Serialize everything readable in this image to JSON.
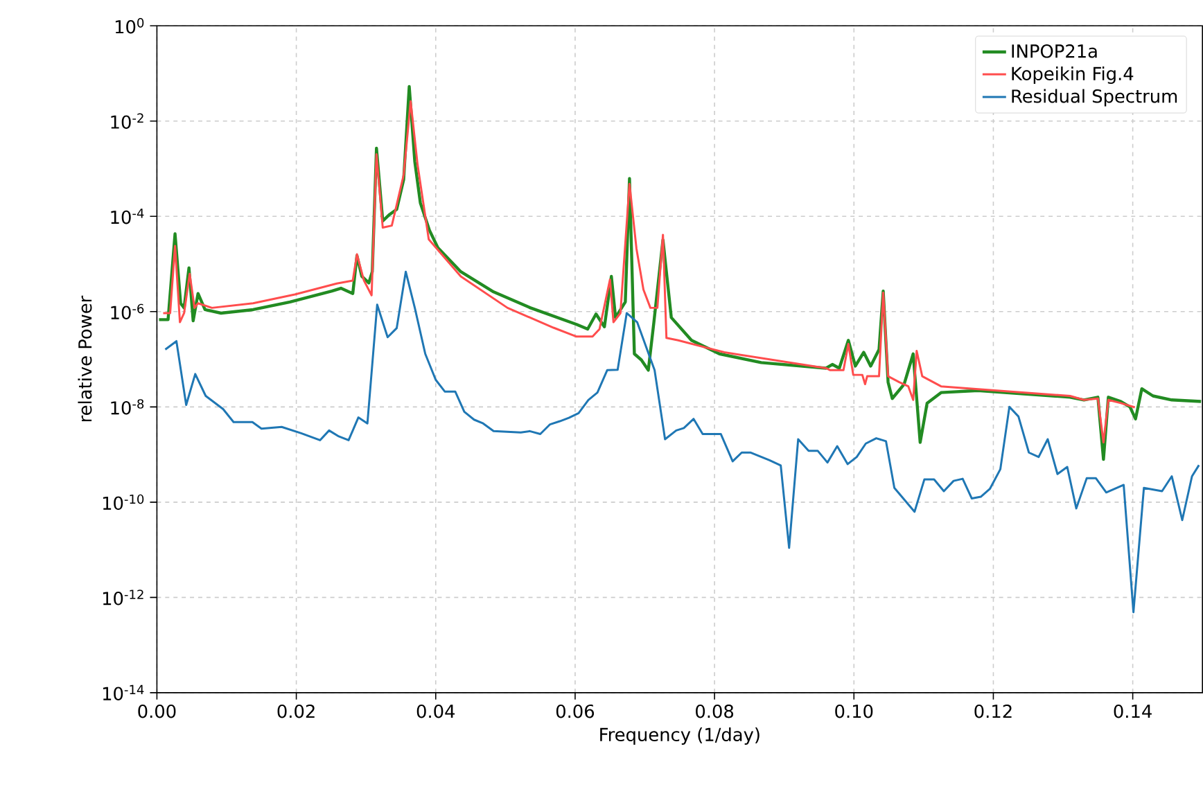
{
  "chart_data": {
    "type": "line",
    "xlabel": "Frequency (1/day)",
    "ylabel": "relative Power",
    "log": "y",
    "grid": true,
    "legend": "top right",
    "xlim": [
      0,
      0.15
    ],
    "ylim": [
      1e-14,
      1
    ],
    "xticks": [
      {
        "value": 0,
        "label": "0.00"
      },
      {
        "value": 0.02,
        "label": "0.02"
      },
      {
        "value": 0.04,
        "label": "0.04"
      },
      {
        "value": 0.06,
        "label": "0.06"
      },
      {
        "value": 0.08,
        "label": "0.08"
      },
      {
        "value": 0.1,
        "label": "0.10"
      },
      {
        "value": 0.12,
        "label": "0.12"
      },
      {
        "value": 0.14,
        "label": "0.14"
      }
    ],
    "yticks": [
      {
        "value": 1e-14,
        "label": "10$^{-14}$"
      },
      {
        "value": 1e-12,
        "label": "10$^{-12}$"
      },
      {
        "value": 1e-10,
        "label": "10$^{-10}$"
      },
      {
        "value": 1e-08,
        "label": "10$^{-8}$"
      },
      {
        "value": 1e-06,
        "label": "10$^{-6}$"
      },
      {
        "value": 0.0001,
        "label": "10$^{-4}$"
      },
      {
        "value": 0.01,
        "label": "10$^{-2}$"
      },
      {
        "value": 1,
        "label": "10$^{0}$"
      }
    ],
    "series": [
      {
        "name": "INPOP21a",
        "color": "#228b22",
        "x": [
          0.0003,
          0.0016,
          0.0026,
          0.0034,
          0.0039,
          0.0046,
          0.0052,
          0.0059,
          0.0069,
          0.0092,
          0.0138,
          0.0191,
          0.0251,
          0.0264,
          0.0281,
          0.0287,
          0.0294,
          0.0304,
          0.0309,
          0.0315,
          0.0324,
          0.0334,
          0.0344,
          0.0354,
          0.0362,
          0.037,
          0.0378,
          0.0391,
          0.0403,
          0.0436,
          0.0483,
          0.0536,
          0.0602,
          0.0618,
          0.063,
          0.0642,
          0.0652,
          0.0658,
          0.0672,
          0.0678,
          0.0685,
          0.0695,
          0.0705,
          0.0713,
          0.0726,
          0.0738,
          0.0767,
          0.0807,
          0.0867,
          0.096,
          0.0969,
          0.0979,
          0.0992,
          0.1002,
          0.1014,
          0.1024,
          0.1036,
          0.1042,
          0.1049,
          0.1055,
          0.1072,
          0.1085,
          0.1095,
          0.1105,
          0.1125,
          0.1178,
          0.131,
          0.133,
          0.135,
          0.1358,
          0.1365,
          0.1383,
          0.1396,
          0.1404,
          0.1413,
          0.1429,
          0.1456,
          0.1498
        ],
        "values": [
          6.8e-07,
          6.8e-07,
          4.3e-05,
          1.5e-06,
          1.2e-06,
          8.3e-06,
          6.4e-07,
          2.4e-06,
          1.1e-06,
          9.3e-07,
          1.1e-06,
          1.6e-06,
          2.7e-06,
          3.1e-06,
          2.4e-06,
          1.5e-05,
          5.5e-06,
          4e-06,
          6.9e-06,
          0.0027,
          8e-05,
          0.00011,
          0.00014,
          0.00059,
          0.053,
          0.0014,
          0.00019,
          5.1e-05,
          2.2e-05,
          6.9e-06,
          2.6e-06,
          1.2e-06,
          5.4e-07,
          4.3e-07,
          8.9e-07,
          4.8e-07,
          5.5e-06,
          7.5e-07,
          1.6e-06,
          0.00062,
          1.3e-07,
          9.7e-08,
          5.9e-08,
          6e-07,
          3.2e-05,
          7.5e-07,
          2.5e-07,
          1.3e-07,
          8.5e-08,
          6.5e-08,
          7.8e-08,
          6.5e-08,
          2.5e-07,
          7.2e-08,
          1.4e-07,
          7.2e-08,
          1.6e-07,
          2.7e-06,
          3.3e-08,
          1.5e-08,
          3e-08,
          1.3e-07,
          1.8e-09,
          1.2e-08,
          2e-08,
          2.2e-08,
          1.6e-08,
          1.4e-08,
          1.6e-08,
          7.9e-10,
          1.6e-08,
          1.3e-08,
          1e-08,
          5.6e-09,
          2.4e-08,
          1.7e-08,
          1.4e-08,
          1.3e-08
        ]
      },
      {
        "name": "Kopeikin Fig.4",
        "color": "#ff4d4d",
        "x": [
          0.0009,
          0.0019,
          0.0026,
          0.0033,
          0.0039,
          0.0047,
          0.0054,
          0.0059,
          0.0079,
          0.0138,
          0.0198,
          0.0258,
          0.0281,
          0.0287,
          0.0297,
          0.0308,
          0.0315,
          0.0324,
          0.0337,
          0.0354,
          0.0364,
          0.0374,
          0.039,
          0.0436,
          0.0503,
          0.0569,
          0.0602,
          0.0625,
          0.0635,
          0.065,
          0.0655,
          0.0665,
          0.0678,
          0.0688,
          0.0698,
          0.0708,
          0.0718,
          0.0726,
          0.0731,
          0.0748,
          0.0814,
          0.096,
          0.0966,
          0.0985,
          0.0992,
          0.0999,
          0.1012,
          0.1016,
          0.1019,
          0.1036,
          0.1042,
          0.1049,
          0.1065,
          0.1078,
          0.1085,
          0.109,
          0.1098,
          0.1125,
          0.131,
          0.133,
          0.135,
          0.1358,
          0.1365,
          0.1383,
          0.1403
        ],
        "values": [
          9.3e-07,
          9.3e-07,
          2.4e-05,
          6e-07,
          9.3e-07,
          6.2e-06,
          1.2e-06,
          1.5e-06,
          1.2e-06,
          1.5e-06,
          2.3e-06,
          3.9e-06,
          4.5e-06,
          1.6e-05,
          4.5e-06,
          2.2e-06,
          0.002,
          5.8e-05,
          6.4e-05,
          0.00074,
          0.026,
          0.0012,
          3.3e-05,
          5.5e-06,
          1.2e-06,
          4.6e-07,
          3e-07,
          3e-07,
          4.3e-07,
          4.7e-06,
          6e-07,
          9.3e-07,
          0.00048,
          2.1e-05,
          2.9e-06,
          1.2e-06,
          1.2e-06,
          4.1e-05,
          2.8e-07,
          2.5e-07,
          1.4e-07,
          6.5e-08,
          5.9e-08,
          5.9e-08,
          2.1e-07,
          4.7e-08,
          4.7e-08,
          3e-08,
          4.4e-08,
          4.4e-08,
          2.5e-06,
          4.4e-08,
          3.3e-08,
          2.7e-08,
          1.4e-08,
          1.5e-07,
          4.4e-08,
          2.7e-08,
          1.7e-08,
          1.4e-08,
          1.5e-08,
          1.8e-09,
          1.4e-08,
          1.2e-08,
          9.8e-09
        ]
      },
      {
        "name": "Residual Spectrum",
        "color": "#1f77b4",
        "x": [
          0.0012,
          0.0028,
          0.0042,
          0.0055,
          0.007,
          0.0095,
          0.011,
          0.0137,
          0.015,
          0.0179,
          0.0207,
          0.0234,
          0.0247,
          0.0261,
          0.0275,
          0.0289,
          0.0302,
          0.0316,
          0.0331,
          0.0344,
          0.0357,
          0.037,
          0.0385,
          0.04,
          0.0413,
          0.0428,
          0.0441,
          0.0455,
          0.0468,
          0.0483,
          0.0522,
          0.0535,
          0.055,
          0.0564,
          0.0578,
          0.0591,
          0.0605,
          0.0619,
          0.0632,
          0.0646,
          0.0661,
          0.0674,
          0.0689,
          0.0714,
          0.0729,
          0.0745,
          0.0756,
          0.077,
          0.0783,
          0.0809,
          0.0826,
          0.0839,
          0.0852,
          0.0879,
          0.0895,
          0.0907,
          0.092,
          0.0935,
          0.0948,
          0.0962,
          0.0976,
          0.0991,
          0.1004,
          0.1017,
          0.1032,
          0.1046,
          0.1058,
          0.1087,
          0.1101,
          0.1115,
          0.1129,
          0.1143,
          0.1156,
          0.1169,
          0.1182,
          0.1195,
          0.121,
          0.1223,
          0.1236,
          0.1251,
          0.1265,
          0.1278,
          0.1292,
          0.1306,
          0.1319,
          0.1334,
          0.1347,
          0.1362,
          0.1387,
          0.1401,
          0.1416,
          0.1442,
          0.1456,
          0.1471,
          0.1485,
          0.1495
        ],
        "values": [
          1.6e-07,
          2.4e-07,
          1.1e-08,
          4.9e-08,
          1.7e-08,
          9e-09,
          4.8e-09,
          4.8e-09,
          3.5e-09,
          3.8e-09,
          2.8e-09,
          2e-09,
          3.2e-09,
          2.4e-09,
          2e-09,
          6e-09,
          4.5e-09,
          1.4e-06,
          2.9e-07,
          4.5e-07,
          6.9e-06,
          1.2e-06,
          1.3e-07,
          3.7e-08,
          2.1e-08,
          2.1e-08,
          7.9e-09,
          5.4e-09,
          4.5e-09,
          3.1e-09,
          2.9e-09,
          3.1e-09,
          2.7e-09,
          4.3e-09,
          5e-09,
          5.9e-09,
          7.4e-09,
          1.4e-08,
          2e-08,
          5.9e-08,
          6e-08,
          9.3e-07,
          6e-07,
          5.9e-08,
          2.1e-09,
          3.2e-09,
          3.6e-09,
          5.6e-09,
          2.7e-09,
          2.7e-09,
          7.2e-10,
          1.1e-09,
          1.1e-09,
          7.6e-10,
          5.9e-10,
          1.1e-11,
          2.1e-09,
          1.2e-09,
          1.2e-09,
          6.8e-10,
          1.5e-09,
          6.3e-10,
          8.9e-10,
          1.7e-09,
          2.2e-09,
          1.9e-09,
          2e-10,
          6.3e-11,
          3e-10,
          3e-10,
          1.7e-10,
          2.8e-10,
          3.1e-10,
          1.2e-10,
          1.3e-10,
          1.9e-10,
          4.9e-10,
          1e-08,
          6.3e-09,
          1.1e-09,
          8.9e-10,
          2.1e-09,
          3.9e-10,
          5.5e-10,
          7.4e-11,
          3.2e-10,
          3.2e-10,
          1.6e-10,
          2.3e-10,
          4.9e-13,
          2e-10,
          1.7e-10,
          3.5e-10,
          4.2e-11,
          3.5e-10,
          6e-10
        ]
      }
    ]
  }
}
